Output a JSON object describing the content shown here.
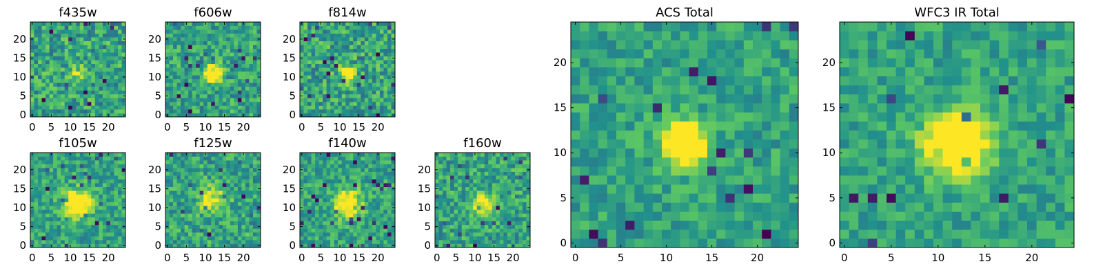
{
  "chart_data": [
    {
      "type": "heatmap",
      "title": "f435w",
      "grid": [
        25,
        25
      ],
      "xlim": [
        -0.5,
        24.5
      ],
      "ylim": [
        -0.5,
        24.5
      ],
      "xticks": [
        0,
        5,
        10,
        15,
        20
      ],
      "yticks": [
        0,
        5,
        10,
        15,
        20
      ],
      "xtick_labels": [
        "0",
        "5",
        "10",
        "15",
        "20"
      ],
      "ytick_labels": [
        "0",
        "5",
        "10",
        "15",
        "20"
      ],
      "source": {
        "x": 12,
        "y": 11,
        "radius": 1.5,
        "peak": 0.25
      },
      "noise": 0.45,
      "seed": 11
    },
    {
      "type": "heatmap",
      "title": "f606w",
      "grid": [
        25,
        25
      ],
      "xlim": [
        -0.5,
        24.5
      ],
      "ylim": [
        -0.5,
        24.5
      ],
      "xticks": [
        0,
        5,
        10,
        15,
        20
      ],
      "yticks": [
        0,
        5,
        10,
        15,
        20
      ],
      "xtick_labels": [
        "0",
        "5",
        "10",
        "15",
        "20"
      ],
      "ytick_labels": [
        "0",
        "5",
        "10",
        "15",
        "20"
      ],
      "source": {
        "x": 12,
        "y": 11,
        "radius": 1.5,
        "peak": 1.0
      },
      "noise": 0.4,
      "seed": 23
    },
    {
      "type": "heatmap",
      "title": "f814w",
      "grid": [
        25,
        25
      ],
      "xlim": [
        -0.5,
        24.5
      ],
      "ylim": [
        -0.5,
        24.5
      ],
      "xticks": [
        0,
        5,
        10,
        15,
        20
      ],
      "yticks": [
        0,
        5,
        10,
        15,
        20
      ],
      "xtick_labels": [
        "0",
        "5",
        "10",
        "15",
        "20"
      ],
      "ytick_labels": [
        "0",
        "5",
        "10",
        "15",
        "20"
      ],
      "source": {
        "x": 12,
        "y": 11,
        "radius": 1.5,
        "peak": 0.6
      },
      "noise": 0.45,
      "seed": 37
    },
    {
      "type": "heatmap",
      "title": "f105w",
      "grid": [
        25,
        25
      ],
      "xlim": [
        -0.5,
        24.5
      ],
      "ylim": [
        -0.5,
        24.5
      ],
      "xticks": [
        0,
        5,
        10,
        15,
        20
      ],
      "yticks": [
        0,
        5,
        10,
        15,
        20
      ],
      "xtick_labels": [
        "0",
        "5",
        "10",
        "15",
        "20"
      ],
      "ytick_labels": [
        "0",
        "5",
        "10",
        "15",
        "20"
      ],
      "source": {
        "x": 12,
        "y": 11,
        "radius": 2.5,
        "peak": 0.7
      },
      "noise": 0.35,
      "seed": 41
    },
    {
      "type": "heatmap",
      "title": "f125w",
      "grid": [
        25,
        25
      ],
      "xlim": [
        -0.5,
        24.5
      ],
      "ylim": [
        -0.5,
        24.5
      ],
      "xticks": [
        0,
        5,
        10,
        15,
        20
      ],
      "yticks": [
        0,
        5,
        10,
        15,
        20
      ],
      "xtick_labels": [
        "0",
        "5",
        "10",
        "15",
        "20"
      ],
      "ytick_labels": [
        "0",
        "5",
        "10",
        "15",
        "20"
      ],
      "source": {
        "x": 12,
        "y": 12,
        "radius": 2.5,
        "peak": 0.4
      },
      "noise": 0.4,
      "seed": 53
    },
    {
      "type": "heatmap",
      "title": "f140w",
      "grid": [
        25,
        25
      ],
      "xlim": [
        -0.5,
        24.5
      ],
      "ylim": [
        -0.5,
        24.5
      ],
      "xticks": [
        0,
        5,
        10,
        15,
        20
      ],
      "yticks": [
        0,
        5,
        10,
        15,
        20
      ],
      "xtick_labels": [
        "0",
        "5",
        "10",
        "15",
        "20"
      ],
      "ytick_labels": [
        "0",
        "5",
        "10",
        "15",
        "20"
      ],
      "source": {
        "x": 12,
        "y": 11,
        "radius": 2.5,
        "peak": 0.6
      },
      "noise": 0.35,
      "seed": 67
    },
    {
      "type": "heatmap",
      "title": "f160w",
      "grid": [
        25,
        25
      ],
      "xlim": [
        -0.5,
        24.5
      ],
      "ylim": [
        -0.5,
        24.5
      ],
      "xticks": [
        0,
        5,
        10,
        15,
        20
      ],
      "yticks": [
        0,
        5,
        10,
        15,
        20
      ],
      "xtick_labels": [
        "0",
        "5",
        "10",
        "15",
        "20"
      ],
      "ytick_labels": [
        "0",
        "5",
        "10",
        "15",
        "20"
      ],
      "source": {
        "x": 12,
        "y": 11,
        "radius": 2.0,
        "peak": 0.5
      },
      "noise": 0.4,
      "seed": 79
    },
    {
      "type": "heatmap",
      "title": "ACS Total",
      "grid": [
        25,
        25
      ],
      "xlim": [
        -0.5,
        24.5
      ],
      "ylim": [
        -0.5,
        24.5
      ],
      "xticks": [
        0,
        5,
        10,
        15,
        20
      ],
      "yticks": [
        0,
        5,
        10,
        15,
        20
      ],
      "xtick_labels": [
        "0",
        "5",
        "10",
        "15",
        "20"
      ],
      "ytick_labels": [
        "0",
        "5",
        "10",
        "15",
        "20"
      ],
      "source": {
        "x": 12,
        "y": 11,
        "radius": 1.6,
        "peak": 1.0
      },
      "noise": 0.3,
      "seed": 91
    },
    {
      "type": "heatmap",
      "title": "WFC3 IR Total",
      "grid": [
        25,
        25
      ],
      "xlim": [
        -0.5,
        24.5
      ],
      "ylim": [
        -0.5,
        24.5
      ],
      "xticks": [
        0,
        5,
        10,
        15,
        20
      ],
      "yticks": [
        0,
        5,
        10,
        15,
        20
      ],
      "xtick_labels": [
        "0",
        "5",
        "10",
        "15",
        "20"
      ],
      "ytick_labels": [
        "0",
        "5",
        "10",
        "15",
        "20"
      ],
      "source": {
        "x": 12,
        "y": 11,
        "radius": 2.2,
        "peak": 1.0
      },
      "noise": 0.28,
      "seed": 103
    }
  ],
  "colormap": [
    "#440154",
    "#3b528b",
    "#21918c",
    "#5ec962",
    "#fde725"
  ]
}
